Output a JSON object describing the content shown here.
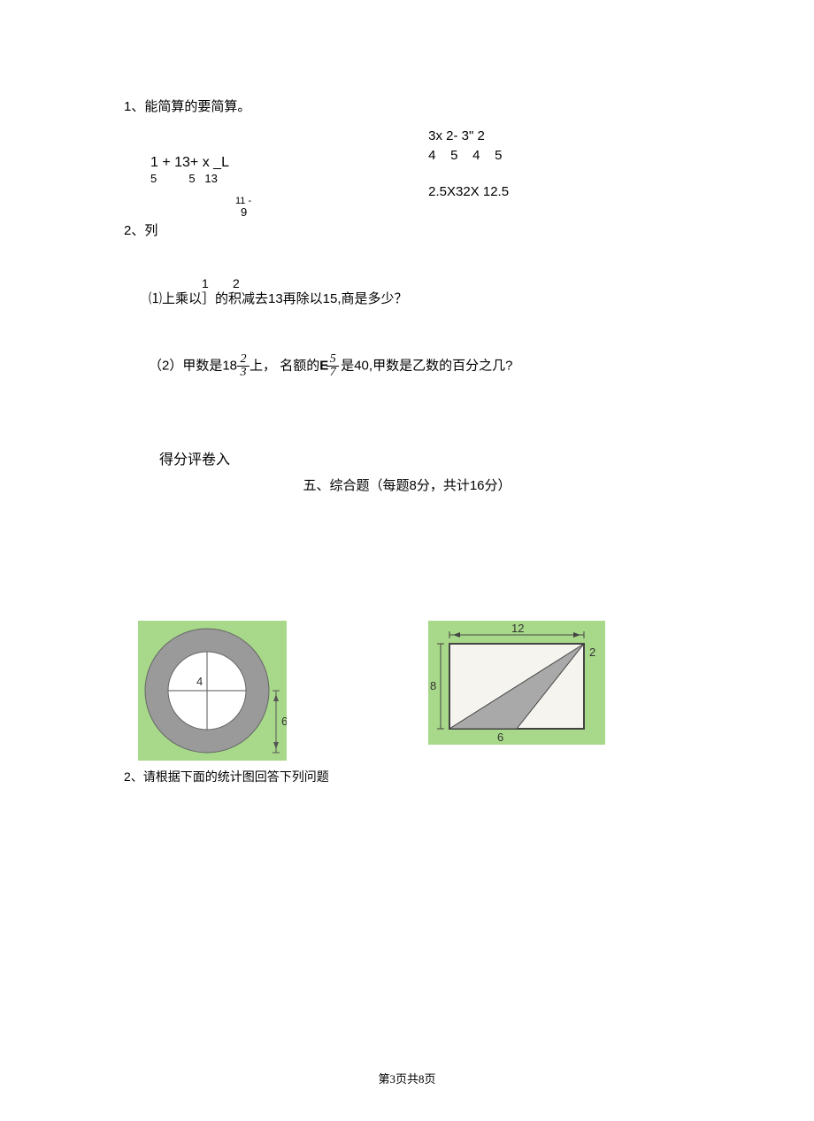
{
  "q1": {
    "heading": "1、能简算的要简算。",
    "left_top": "1 + 13+ x _L",
    "left_bot": "5          5   13",
    "small_top": "11 -",
    "small_bot": "9",
    "right_top": "3x 2- 3\" 2",
    "right_sub": "4    5    4    5",
    "right_2": "2.5X32X 12.5"
  },
  "q2_label": "2、列",
  "subq1": {
    "top_nums": "1       2",
    "text": "⑴上乘以］的积减去13再除以15,商是多少？"
  },
  "subq2": {
    "pre": "（2）甲数是18",
    "frac1_num": "2",
    "frac1_den": "3",
    "mid": "上，  名额的",
    "E": "E",
    "is": "是40,甲数是乙数的百分之几?",
    "frac2_num": "5",
    "frac2_den": "7"
  },
  "score_label": "得分评卷入",
  "section5_title": "五、综合题（每题8分，共计16分）",
  "fig1": {
    "bg_color": "#a8d98a",
    "ring_color": "#9a9a9a",
    "inner_color": "#ffffff",
    "line_color": "#555555",
    "label_4": "4",
    "label_6": "6",
    "outer_w": 168,
    "outer_h": 158,
    "outer_r": 70,
    "inner_r": 44
  },
  "fig2": {
    "bg_color": "#a8d98a",
    "rect_fill": "#f5f4ef",
    "tri_fill": "#a9a9a9",
    "line_color": "#444444",
    "label_12": "12",
    "label_8": "8",
    "label_6": "6",
    "label_2": "2",
    "outer_w": 200,
    "outer_h": 140
  },
  "caption2": "2、请根据下面的统计图回答下列问题",
  "footer": "第3页共8页"
}
